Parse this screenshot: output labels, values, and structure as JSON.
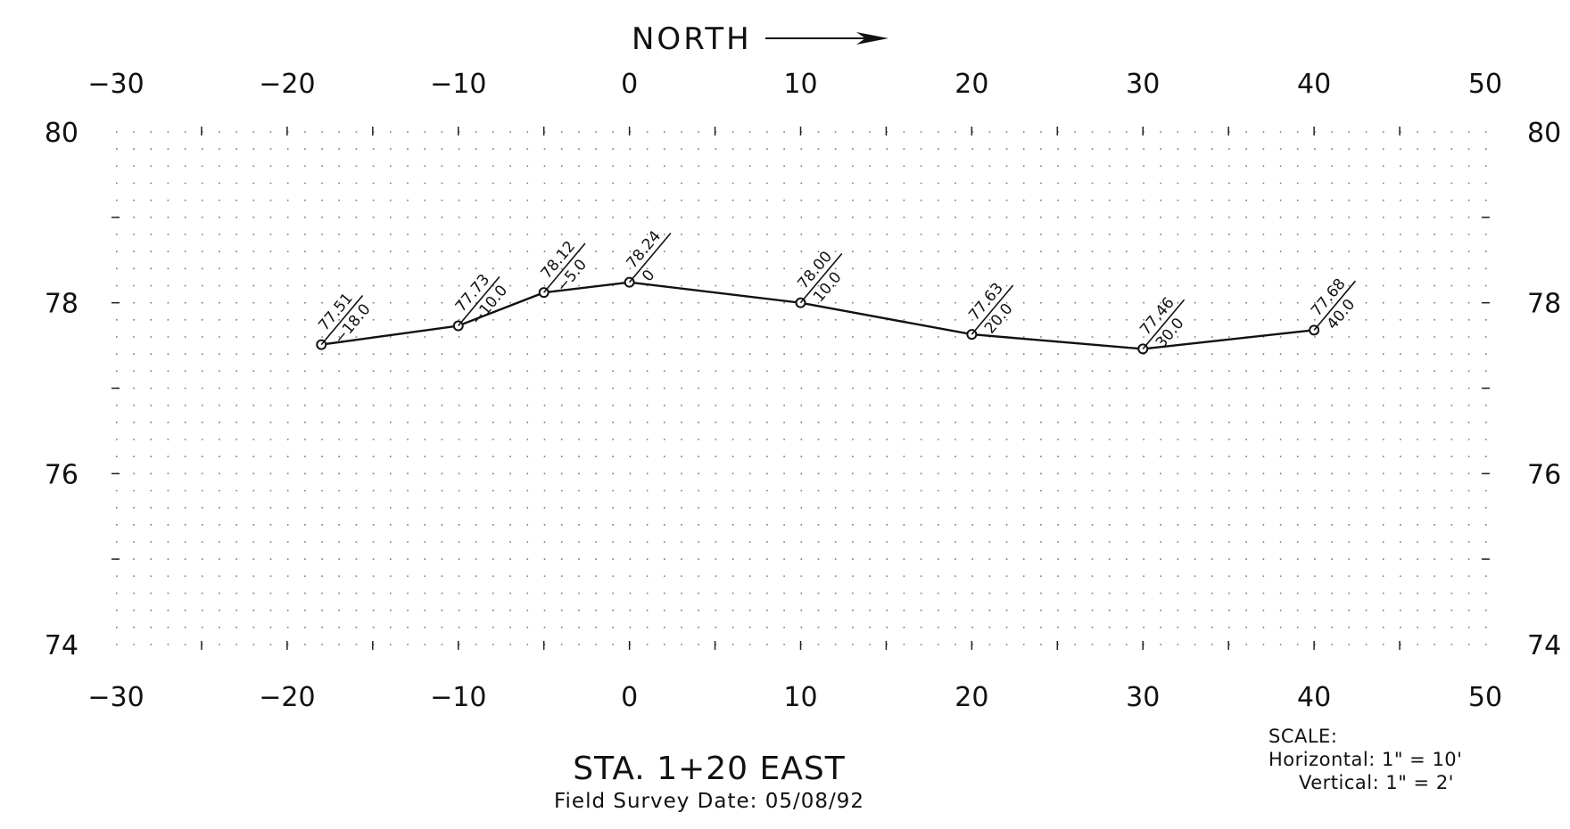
{
  "header": {
    "north_label": "NORTH"
  },
  "title": "STA. 1+20 EAST",
  "subtitle": "Field Survey Date: 05/08/92",
  "scale": {
    "heading": "SCALE:",
    "horizontal": "Horizontal: 1\" = 10'",
    "vertical": "Vertical: 1\" = 2'"
  },
  "chart_data": {
    "type": "line",
    "title": "STA. 1+20 EAST",
    "xlabel": "",
    "ylabel": "",
    "xlim": [
      -30,
      50
    ],
    "ylim": [
      74,
      80
    ],
    "x_ticks": [
      "−30",
      "−20",
      "−10",
      "0",
      "10",
      "20",
      "30",
      "40",
      "50"
    ],
    "x_tick_values": [
      -30,
      -20,
      -10,
      0,
      10,
      20,
      30,
      40,
      50
    ],
    "y_ticks": [
      "74",
      "76",
      "78",
      "80"
    ],
    "y_tick_values": [
      74,
      76,
      78,
      80
    ],
    "grid": true,
    "series": [
      {
        "values_x": [
          -18,
          -10,
          -5,
          0,
          10,
          20,
          30,
          40
        ],
        "values_y": [
          77.51,
          77.73,
          78.12,
          78.24,
          78.0,
          77.63,
          77.46,
          77.68
        ],
        "labels_elev": [
          "77.51",
          "77.73",
          "78.12",
          "78.24",
          "78.00",
          "77.63",
          "77.46",
          "77.68"
        ],
        "labels_offset": [
          "−18.0",
          "−10.0",
          "−5.0",
          "0",
          "10.0",
          "20.0",
          "30.0",
          "40.0"
        ]
      }
    ]
  }
}
